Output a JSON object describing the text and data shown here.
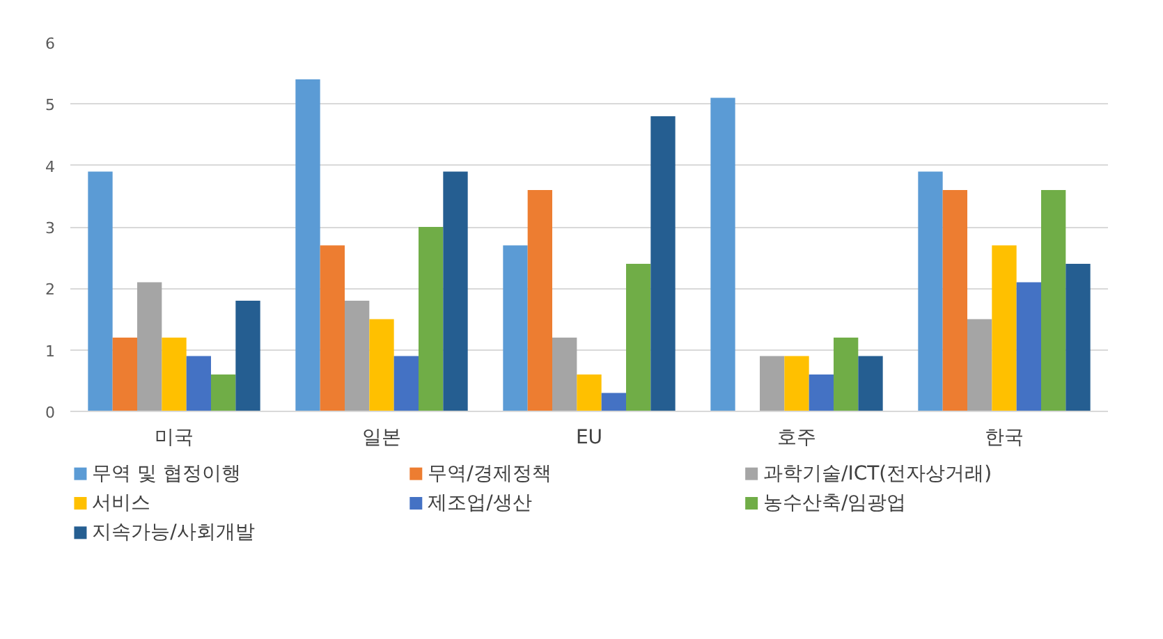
{
  "chart_data": {
    "type": "bar",
    "categories": [
      "미국",
      "일본",
      "EU",
      "호주",
      "한국"
    ],
    "series": [
      {
        "name": "무역 및 협정이행",
        "color": "#5b9bd5",
        "values": [
          3.9,
          5.4,
          2.7,
          5.1,
          3.9
        ]
      },
      {
        "name": "무역/경제정책",
        "color": "#ed7d31",
        "values": [
          1.2,
          2.7,
          3.6,
          0,
          3.6
        ]
      },
      {
        "name": "과학기술/ICT(전자상거래)",
        "color": "#a5a5a5",
        "values": [
          2.1,
          1.8,
          1.2,
          0.9,
          1.5
        ]
      },
      {
        "name": "서비스",
        "color": "#ffc000",
        "values": [
          1.2,
          1.5,
          0.6,
          0.9,
          2.7
        ]
      },
      {
        "name": "제조업/생산",
        "color": "#4472c4",
        "values": [
          0.9,
          0.9,
          0.3,
          0.6,
          2.1
        ]
      },
      {
        "name": "농수산축/임광업",
        "color": "#70ad47",
        "values": [
          0.6,
          3.0,
          2.4,
          1.2,
          3.6
        ]
      },
      {
        "name": "지속가능/사회개발",
        "color": "#255e91",
        "values": [
          1.8,
          3.9,
          4.8,
          0.9,
          2.4
        ]
      }
    ],
    "ylim": [
      0,
      6
    ],
    "yticks": [
      0,
      1,
      2,
      3,
      4,
      5,
      6
    ],
    "grid": "y",
    "legend": "bottom"
  }
}
